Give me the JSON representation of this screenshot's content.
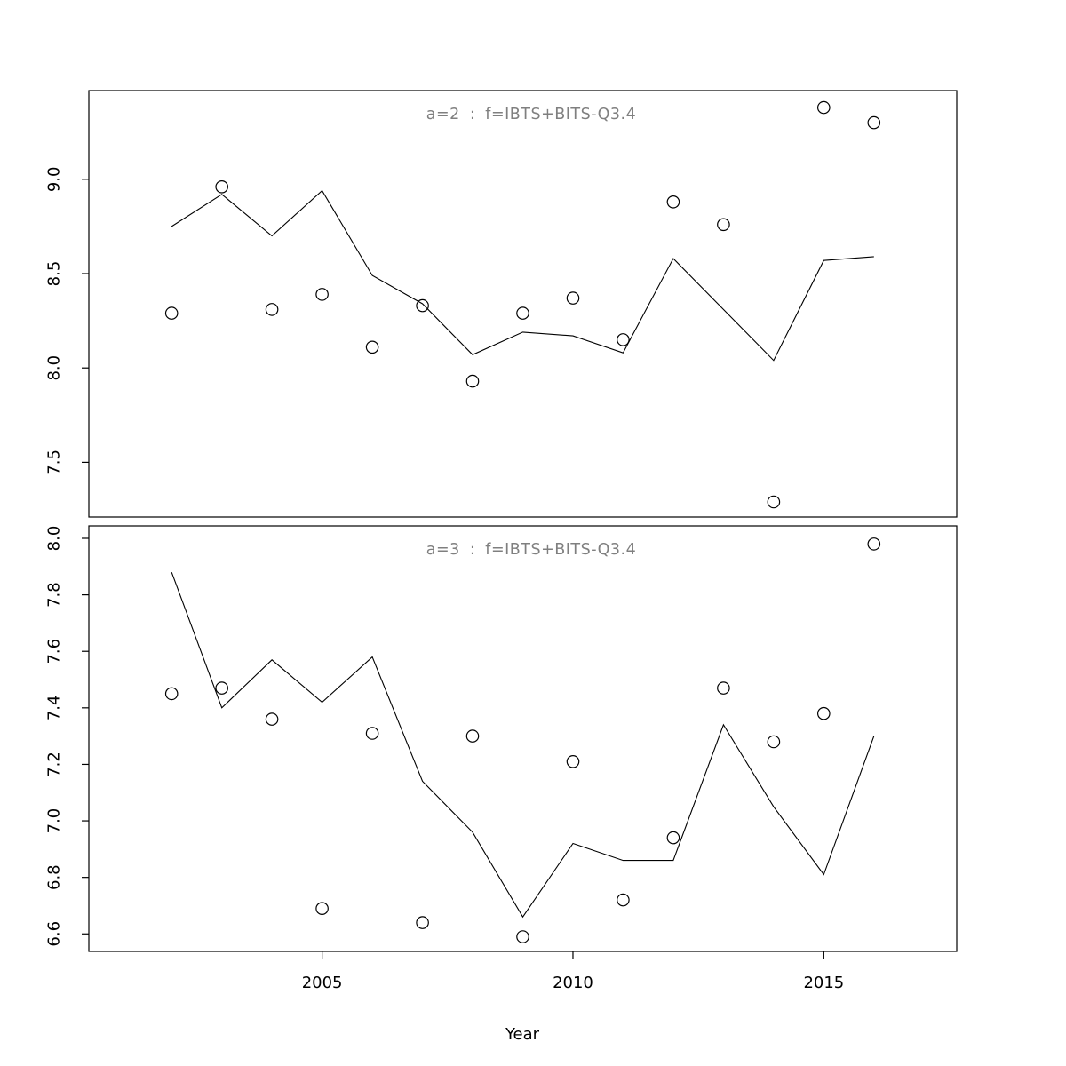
{
  "figure": {
    "xlabel": "Year",
    "x_ticks": [
      2005,
      2010,
      2015
    ],
    "xlim": [
      2000.35,
      2017.65
    ],
    "background": "#ffffff",
    "axis_color": "#000000",
    "title_color": "#7f7f7f",
    "series_color": "#000000"
  },
  "chart_data": [
    {
      "type": "line",
      "title": "a=2  :  f=IBTS+BITS-Q3.4",
      "xlabel": "Year",
      "ylabel": "",
      "x": [
        2002,
        2003,
        2004,
        2005,
        2006,
        2007,
        2008,
        2009,
        2010,
        2011,
        2012,
        2013,
        2014,
        2015,
        2016
      ],
      "series": [
        {
          "name": "observed",
          "style": "points",
          "marker": "open-circle",
          "values": [
            8.29,
            8.96,
            8.31,
            8.39,
            8.11,
            8.33,
            7.93,
            8.29,
            8.37,
            8.15,
            8.88,
            8.76,
            7.29,
            9.38,
            9.3
          ]
        },
        {
          "name": "fitted",
          "style": "line",
          "values": [
            8.75,
            8.92,
            8.7,
            8.94,
            8.49,
            8.34,
            8.07,
            8.19,
            8.17,
            8.08,
            8.58,
            8.31,
            8.04,
            8.57,
            8.59
          ]
        }
      ],
      "ylim": [
        7.21,
        9.47
      ],
      "yticks": [
        7.5,
        8.0,
        8.5,
        9.0
      ],
      "grid": false,
      "legend": "none"
    },
    {
      "type": "line",
      "title": "a=3  :  f=IBTS+BITS-Q3.4",
      "xlabel": "Year",
      "ylabel": "",
      "x": [
        2002,
        2003,
        2004,
        2005,
        2006,
        2007,
        2008,
        2009,
        2010,
        2011,
        2012,
        2013,
        2014,
        2015,
        2016
      ],
      "series": [
        {
          "name": "observed",
          "style": "points",
          "marker": "open-circle",
          "values": [
            7.45,
            7.47,
            7.36,
            6.69,
            7.31,
            6.64,
            7.3,
            6.59,
            7.21,
            6.72,
            6.94,
            7.47,
            7.28,
            7.38,
            7.98
          ]
        },
        {
          "name": "fitted",
          "style": "line",
          "values": [
            7.88,
            7.4,
            7.57,
            7.42,
            7.58,
            7.14,
            6.96,
            6.66,
            6.92,
            6.86,
            6.86,
            7.34,
            7.05,
            6.81,
            7.3
          ]
        }
      ],
      "ylim": [
        6.538,
        8.044
      ],
      "yticks": [
        6.6,
        6.8,
        7.0,
        7.2,
        7.4,
        7.6,
        7.8,
        8.0
      ],
      "grid": false,
      "legend": "none"
    }
  ]
}
